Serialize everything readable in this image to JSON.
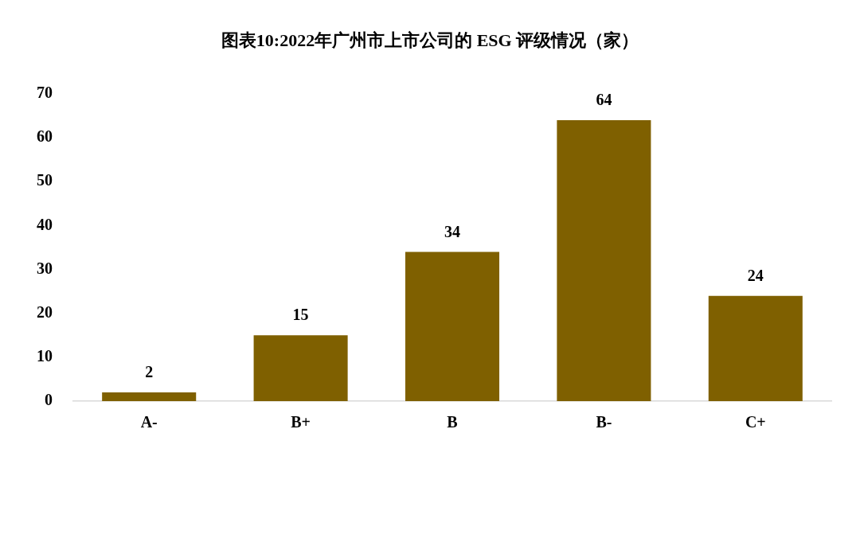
{
  "chart_data": {
    "type": "bar",
    "title": "图表10:2022年广州市上市公司的 ESG 评级情况（家）",
    "categories": [
      "A-",
      "B+",
      "B",
      "B-",
      "C+"
    ],
    "values": [
      2,
      15,
      34,
      64,
      24
    ],
    "color": "#7f6000",
    "ylim": [
      0,
      70
    ],
    "yticks": [
      0,
      10,
      20,
      30,
      40,
      50,
      60,
      70
    ],
    "grid": false,
    "legend": false,
    "data_labels": true
  }
}
